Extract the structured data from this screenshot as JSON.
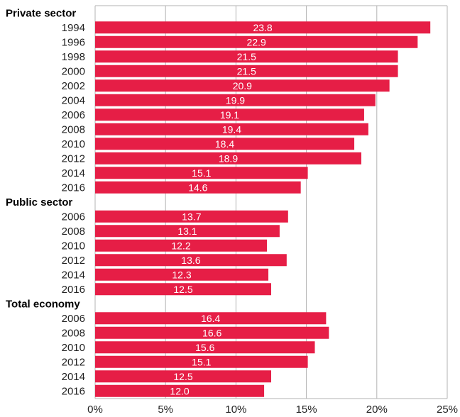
{
  "chart_data": {
    "type": "bar",
    "orientation": "horizontal",
    "bar_color": "#e61e46",
    "grid_color": "#b3b3b3",
    "grid": true,
    "xlim": [
      0,
      25
    ],
    "x_ticks": [
      "0%",
      "5%",
      "10%",
      "15%",
      "20%",
      "25%"
    ],
    "x_tick_values": [
      0,
      5,
      10,
      15,
      20,
      25
    ],
    "groups": [
      {
        "label": "Private sector",
        "categories": [
          "1994",
          "1996",
          "1998",
          "2000",
          "2002",
          "2004",
          "2006",
          "2008",
          "2010",
          "2012",
          "2014",
          "2016"
        ],
        "values": [
          23.8,
          22.9,
          21.5,
          21.5,
          20.9,
          19.9,
          19.1,
          19.4,
          18.4,
          18.9,
          15.1,
          14.6
        ],
        "value_labels": [
          "23.8",
          "22.9",
          "21.5",
          "21.5",
          "20.9",
          "19.9",
          "19.1",
          "19.4",
          "18.4",
          "18.9",
          "15.1",
          "14.6"
        ]
      },
      {
        "label": "Public sector",
        "categories": [
          "2006",
          "2008",
          "2010",
          "2012",
          "2014",
          "2016"
        ],
        "values": [
          13.7,
          13.1,
          12.2,
          13.6,
          12.3,
          12.5
        ],
        "value_labels": [
          "13.7",
          "13.1",
          "12.2",
          "13.6",
          "12.3",
          "12.5"
        ]
      },
      {
        "label": "Total economy",
        "categories": [
          "2006",
          "2008",
          "2010",
          "2012",
          "2014",
          "2016"
        ],
        "values": [
          16.4,
          16.6,
          15.6,
          15.1,
          12.5,
          12.0
        ],
        "value_labels": [
          "16.4",
          "16.6",
          "15.6",
          "15.1",
          "12.5",
          "12.0"
        ]
      }
    ]
  }
}
